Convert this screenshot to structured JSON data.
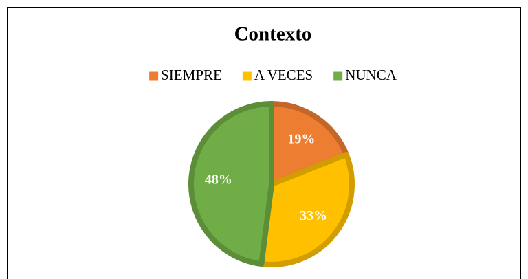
{
  "chart_data": {
    "type": "pie",
    "title": "Contexto",
    "categories": [
      "SIEMPRE",
      "A VECES",
      "NUNCA"
    ],
    "values": [
      19,
      33,
      48
    ],
    "value_labels": [
      "19%",
      "33%",
      "48%"
    ],
    "colors": [
      "#ed7d31",
      "#ffc000",
      "#70ad47"
    ],
    "legend": "top"
  }
}
